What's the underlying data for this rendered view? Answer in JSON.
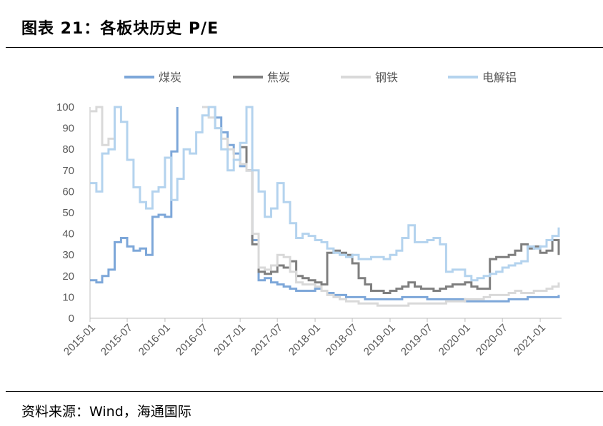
{
  "header": {
    "title": "图表 21：各板块历史 P/E"
  },
  "footer": {
    "source": "资料来源：Wind，海通国际"
  },
  "chart_data": {
    "type": "line",
    "title": "",
    "xlabel": "",
    "ylabel": "",
    "ylim": [
      0,
      100
    ],
    "yticks": [
      0,
      10,
      20,
      30,
      40,
      50,
      60,
      70,
      80,
      90,
      100
    ],
    "x_ticks": [
      "2015-01",
      "2015-07",
      "2016-01",
      "2016-07",
      "2017-01",
      "2017-07",
      "2018-01",
      "2018-07",
      "2019-01",
      "2019-07",
      "2020-01",
      "2020-07",
      "2021-01"
    ],
    "grid": false,
    "legend_position": "top",
    "series": [
      {
        "name": "煤炭",
        "color": "#7da7d9",
        "points": [
          [
            "2015-01-01",
            18
          ],
          [
            "2015-02-01",
            17
          ],
          [
            "2015-03-01",
            20
          ],
          [
            "2015-04-01",
            23
          ],
          [
            "2015-05-01",
            36
          ],
          [
            "2015-06-01",
            38
          ],
          [
            "2015-07-01",
            34
          ],
          [
            "2015-08-01",
            32
          ],
          [
            "2015-09-01",
            33
          ],
          [
            "2015-10-01",
            30
          ],
          [
            "2015-11-01",
            48
          ],
          [
            "2015-12-01",
            49
          ],
          [
            "2016-01-01",
            48
          ],
          [
            "2016-02-01",
            79
          ],
          [
            "2016-03-01",
            100
          ],
          [
            "2016-04-01",
            null
          ],
          [
            "2016-07-01",
            100
          ],
          [
            "2016-08-01",
            100
          ],
          [
            "2016-09-01",
            95
          ],
          [
            "2016-10-01",
            88
          ],
          [
            "2016-11-01",
            82
          ],
          [
            "2016-12-01",
            78
          ],
          [
            "2017-01-01",
            72
          ],
          [
            "2017-02-01",
            70
          ],
          [
            "2017-03-01",
            37
          ],
          [
            "2017-04-01",
            18
          ],
          [
            "2017-05-01",
            19
          ],
          [
            "2017-06-01",
            17
          ],
          [
            "2017-07-01",
            16
          ],
          [
            "2017-08-01",
            15
          ],
          [
            "2017-09-01",
            14
          ],
          [
            "2017-10-01",
            13
          ],
          [
            "2017-11-01",
            13
          ],
          [
            "2017-12-01",
            13
          ],
          [
            "2018-01-01",
            14
          ],
          [
            "2018-02-01",
            13
          ],
          [
            "2018-03-01",
            12
          ],
          [
            "2018-04-01",
            11
          ],
          [
            "2018-05-01",
            11
          ],
          [
            "2018-06-01",
            10
          ],
          [
            "2018-07-01",
            10
          ],
          [
            "2018-08-01",
            10
          ],
          [
            "2018-09-01",
            9
          ],
          [
            "2018-10-01",
            9
          ],
          [
            "2018-11-01",
            9
          ],
          [
            "2018-12-01",
            9
          ],
          [
            "2019-01-01",
            9
          ],
          [
            "2019-02-01",
            9
          ],
          [
            "2019-03-01",
            10
          ],
          [
            "2019-04-01",
            10
          ],
          [
            "2019-05-01",
            10
          ],
          [
            "2019-06-01",
            10
          ],
          [
            "2019-07-01",
            9
          ],
          [
            "2019-08-01",
            9
          ],
          [
            "2019-09-01",
            9
          ],
          [
            "2019-10-01",
            9
          ],
          [
            "2019-11-01",
            9
          ],
          [
            "2019-12-01",
            9
          ],
          [
            "2020-01-01",
            8
          ],
          [
            "2020-02-01",
            8
          ],
          [
            "2020-03-01",
            8
          ],
          [
            "2020-04-01",
            8
          ],
          [
            "2020-05-01",
            8
          ],
          [
            "2020-06-01",
            8
          ],
          [
            "2020-07-01",
            8
          ],
          [
            "2020-08-01",
            9
          ],
          [
            "2020-09-01",
            9
          ],
          [
            "2020-10-01",
            9
          ],
          [
            "2020-11-01",
            10
          ],
          [
            "2020-12-01",
            10
          ],
          [
            "2021-01-01",
            10
          ],
          [
            "2021-02-01",
            10
          ],
          [
            "2021-03-01",
            10
          ],
          [
            "2021-04-01",
            11
          ]
        ]
      },
      {
        "name": "焦炭",
        "color": "#7f7f7f",
        "points": [
          [
            "2017-01-01",
            81
          ],
          [
            "2017-02-01",
            70
          ],
          [
            "2017-03-01",
            35
          ],
          [
            "2017-04-01",
            22
          ],
          [
            "2017-05-01",
            21
          ],
          [
            "2017-06-01",
            22
          ],
          [
            "2017-07-01",
            25
          ],
          [
            "2017-08-01",
            24
          ],
          [
            "2017-09-01",
            27
          ],
          [
            "2017-10-01",
            20
          ],
          [
            "2017-11-01",
            19
          ],
          [
            "2017-12-01",
            18
          ],
          [
            "2018-01-01",
            17
          ],
          [
            "2018-02-01",
            16
          ],
          [
            "2018-03-01",
            31
          ],
          [
            "2018-04-01",
            32
          ],
          [
            "2018-05-01",
            31
          ],
          [
            "2018-06-01",
            30
          ],
          [
            "2018-07-01",
            26
          ],
          [
            "2018-08-01",
            19
          ],
          [
            "2018-09-01",
            16
          ],
          [
            "2018-10-01",
            13
          ],
          [
            "2018-11-01",
            13
          ],
          [
            "2018-12-01",
            12
          ],
          [
            "2019-01-01",
            13
          ],
          [
            "2019-02-01",
            14
          ],
          [
            "2019-03-01",
            15
          ],
          [
            "2019-04-01",
            17
          ],
          [
            "2019-05-01",
            15
          ],
          [
            "2019-06-01",
            14
          ],
          [
            "2019-07-01",
            14
          ],
          [
            "2019-08-01",
            13
          ],
          [
            "2019-09-01",
            14
          ],
          [
            "2019-10-01",
            15
          ],
          [
            "2019-11-01",
            16
          ],
          [
            "2019-12-01",
            16
          ],
          [
            "2020-01-01",
            17
          ],
          [
            "2020-02-01",
            15
          ],
          [
            "2020-03-01",
            14
          ],
          [
            "2020-04-01",
            14
          ],
          [
            "2020-05-01",
            28
          ],
          [
            "2020-06-01",
            29
          ],
          [
            "2020-07-01",
            29
          ],
          [
            "2020-08-01",
            30
          ],
          [
            "2020-09-01",
            32
          ],
          [
            "2020-10-01",
            35
          ],
          [
            "2020-11-01",
            33
          ],
          [
            "2020-12-01",
            34
          ],
          [
            "2021-01-01",
            31
          ],
          [
            "2021-02-01",
            32
          ],
          [
            "2021-03-01",
            37
          ],
          [
            "2021-04-01",
            30
          ]
        ]
      },
      {
        "name": "钢铁",
        "color": "#d9d9d9",
        "points": [
          [
            "2015-01-01",
            98
          ],
          [
            "2015-02-01",
            100
          ],
          [
            "2015-03-01",
            82
          ],
          [
            "2015-04-01",
            85
          ],
          [
            "2015-05-01",
            100
          ],
          [
            "2015-06-01",
            null
          ],
          [
            "2016-07-01",
            100
          ],
          [
            "2016-08-01",
            95
          ],
          [
            "2016-09-01",
            90
          ],
          [
            "2016-10-01",
            85
          ],
          [
            "2016-11-01",
            80
          ],
          [
            "2016-12-01",
            75
          ],
          [
            "2017-01-01",
            73
          ],
          [
            "2017-02-01",
            70
          ],
          [
            "2017-03-01",
            40
          ],
          [
            "2017-04-01",
            24
          ],
          [
            "2017-05-01",
            23
          ],
          [
            "2017-06-01",
            25
          ],
          [
            "2017-07-01",
            30
          ],
          [
            "2017-08-01",
            29
          ],
          [
            "2017-09-01",
            22
          ],
          [
            "2017-10-01",
            17
          ],
          [
            "2017-11-01",
            16
          ],
          [
            "2017-12-01",
            16
          ],
          [
            "2018-01-01",
            15
          ],
          [
            "2018-02-01",
            13
          ],
          [
            "2018-03-01",
            11
          ],
          [
            "2018-04-01",
            10
          ],
          [
            "2018-05-01",
            9
          ],
          [
            "2018-06-01",
            8
          ],
          [
            "2018-07-01",
            8
          ],
          [
            "2018-08-01",
            7
          ],
          [
            "2018-09-01",
            7
          ],
          [
            "2018-10-01",
            7
          ],
          [
            "2018-11-01",
            6
          ],
          [
            "2018-12-01",
            6
          ],
          [
            "2019-01-01",
            6
          ],
          [
            "2019-02-01",
            6
          ],
          [
            "2019-03-01",
            6
          ],
          [
            "2019-04-01",
            7
          ],
          [
            "2019-05-01",
            7
          ],
          [
            "2019-06-01",
            7
          ],
          [
            "2019-07-01",
            7
          ],
          [
            "2019-08-01",
            7
          ],
          [
            "2019-09-01",
            7
          ],
          [
            "2019-10-01",
            8
          ],
          [
            "2019-11-01",
            8
          ],
          [
            "2019-12-01",
            8
          ],
          [
            "2020-01-01",
            9
          ],
          [
            "2020-02-01",
            9
          ],
          [
            "2020-03-01",
            9
          ],
          [
            "2020-04-01",
            10
          ],
          [
            "2020-05-01",
            11
          ],
          [
            "2020-06-01",
            11
          ],
          [
            "2020-07-01",
            11
          ],
          [
            "2020-08-01",
            12
          ],
          [
            "2020-09-01",
            13
          ],
          [
            "2020-10-01",
            12
          ],
          [
            "2020-11-01",
            12
          ],
          [
            "2020-12-01",
            13
          ],
          [
            "2021-01-01",
            13
          ],
          [
            "2021-02-01",
            14
          ],
          [
            "2021-03-01",
            15
          ],
          [
            "2021-04-01",
            17
          ]
        ]
      },
      {
        "name": "电解铝",
        "color": "#b4d3ee",
        "points": [
          [
            "2015-01-01",
            64
          ],
          [
            "2015-02-01",
            60
          ],
          [
            "2015-03-01",
            78
          ],
          [
            "2015-04-01",
            80
          ],
          [
            "2015-05-01",
            100
          ],
          [
            "2015-06-01",
            93
          ],
          [
            "2015-07-01",
            75
          ],
          [
            "2015-08-01",
            62
          ],
          [
            "2015-09-01",
            55
          ],
          [
            "2015-10-01",
            52
          ],
          [
            "2015-11-01",
            60
          ],
          [
            "2015-12-01",
            62
          ],
          [
            "2016-01-01",
            76
          ],
          [
            "2016-02-01",
            56
          ],
          [
            "2016-03-01",
            66
          ],
          [
            "2016-04-01",
            80
          ],
          [
            "2016-05-01",
            78
          ],
          [
            "2016-06-01",
            88
          ],
          [
            "2016-07-01",
            96
          ],
          [
            "2016-08-01",
            100
          ],
          [
            "2016-09-01",
            90
          ],
          [
            "2016-10-01",
            80
          ],
          [
            "2016-11-01",
            70
          ],
          [
            "2016-12-01",
            75
          ],
          [
            "2017-01-01",
            83
          ],
          [
            "2017-02-01",
            100
          ],
          [
            "2017-03-01",
            70
          ],
          [
            "2017-04-01",
            60
          ],
          [
            "2017-05-01",
            48
          ],
          [
            "2017-06-01",
            52
          ],
          [
            "2017-07-01",
            64
          ],
          [
            "2017-08-01",
            55
          ],
          [
            "2017-09-01",
            45
          ],
          [
            "2017-10-01",
            38
          ],
          [
            "2017-11-01",
            40
          ],
          [
            "2017-12-01",
            39
          ],
          [
            "2018-01-01",
            37
          ],
          [
            "2018-02-01",
            36
          ],
          [
            "2018-03-01",
            33
          ],
          [
            "2018-04-01",
            31
          ],
          [
            "2018-05-01",
            30
          ],
          [
            "2018-06-01",
            29
          ],
          [
            "2018-07-01",
            30
          ],
          [
            "2018-08-01",
            28
          ],
          [
            "2018-09-01",
            28
          ],
          [
            "2018-10-01",
            29
          ],
          [
            "2018-11-01",
            29
          ],
          [
            "2018-12-01",
            28
          ],
          [
            "2019-01-01",
            30
          ],
          [
            "2019-02-01",
            32
          ],
          [
            "2019-03-01",
            38
          ],
          [
            "2019-04-01",
            44
          ],
          [
            "2019-05-01",
            36
          ],
          [
            "2019-06-01",
            36
          ],
          [
            "2019-07-01",
            37
          ],
          [
            "2019-08-01",
            38
          ],
          [
            "2019-09-01",
            35
          ],
          [
            "2019-10-01",
            22
          ],
          [
            "2019-11-01",
            23
          ],
          [
            "2019-12-01",
            23
          ],
          [
            "2020-01-01",
            20
          ],
          [
            "2020-02-01",
            18
          ],
          [
            "2020-03-01",
            19
          ],
          [
            "2020-04-01",
            20
          ],
          [
            "2020-05-01",
            21
          ],
          [
            "2020-06-01",
            22
          ],
          [
            "2020-07-01",
            24
          ],
          [
            "2020-08-01",
            25
          ],
          [
            "2020-09-01",
            26
          ],
          [
            "2020-10-01",
            27
          ],
          [
            "2020-11-01",
            34
          ],
          [
            "2020-12-01",
            33
          ],
          [
            "2021-01-01",
            34
          ],
          [
            "2021-02-01",
            37
          ],
          [
            "2021-03-01",
            39
          ],
          [
            "2021-04-01",
            43
          ]
        ]
      }
    ]
  }
}
